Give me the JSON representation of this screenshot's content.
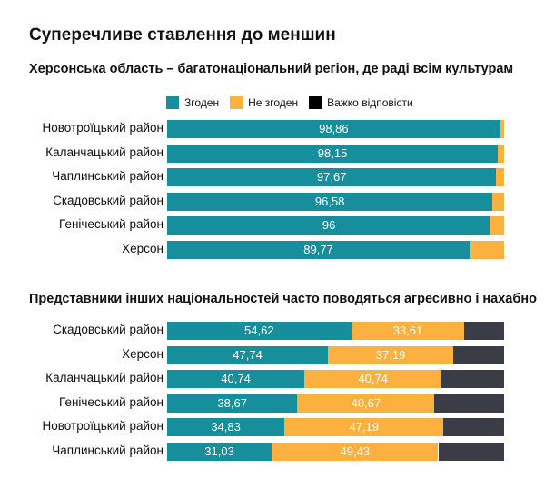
{
  "title": "Суперечливе ставлення до меншин",
  "legend": [
    {
      "label": "Згоден",
      "color": "#168e9c"
    },
    {
      "label": "Не згоден",
      "color": "#fbb040"
    },
    {
      "label": "Важко відповісти",
      "color": "#000000"
    }
  ],
  "chart_data": [
    {
      "type": "bar",
      "orientation": "horizontal",
      "stacked": true,
      "title": "Херсонська область – багатонаціональний регіон, де раді всім культурам",
      "categories": [
        "Новотроїцький район",
        "Каланчацький район",
        "Чаплинський район",
        "Скадовський район",
        "Генічеський район",
        "Херсон"
      ],
      "series": [
        {
          "name": "Згоден",
          "color": "#168e9c",
          "values": [
            98.86,
            98.15,
            97.67,
            96.58,
            96,
            89.77
          ],
          "labels": [
            "98,86",
            "98,15",
            "97,67",
            "96,58",
            "96",
            "89,77"
          ]
        },
        {
          "name": "Не згоден",
          "color": "#fbb040",
          "values": [
            1.14,
            1.85,
            2.33,
            3.42,
            4,
            10.23
          ],
          "labels": []
        },
        {
          "name": "Важко відповісти",
          "color": "#3a3d45",
          "values": [
            0,
            0,
            0,
            0,
            0,
            0
          ],
          "labels": []
        }
      ],
      "xlim": [
        0,
        100
      ]
    },
    {
      "type": "bar",
      "orientation": "horizontal",
      "stacked": true,
      "title": "Представники інших національностей часто поводяться агресивно і нахабно",
      "categories": [
        "Скадовський район",
        "Херсон",
        "Каланчацький район",
        "Генічеський район",
        "Новотроїцький район",
        "Чаплинський район"
      ],
      "series": [
        {
          "name": "Згоден",
          "color": "#168e9c",
          "values": [
            54.62,
            47.74,
            40.74,
            38.67,
            34.83,
            31.03
          ],
          "labels": [
            "54,62",
            "47,74",
            "40,74",
            "38,67",
            "34,83",
            "31,03"
          ]
        },
        {
          "name": "Не згоден",
          "color": "#fbb040",
          "values": [
            33.61,
            37.19,
            40.74,
            40.67,
            47.19,
            49.43
          ],
          "labels": [
            "33,61",
            "37,19",
            "40,74",
            "40,67",
            "47,19",
            "49,43"
          ]
        },
        {
          "name": "Важко відповісти",
          "color": "#3a3d45",
          "values": [
            11.77,
            15.07,
            18.52,
            20.66,
            17.98,
            19.54
          ],
          "labels": []
        }
      ],
      "xlim": [
        0,
        100
      ]
    }
  ]
}
